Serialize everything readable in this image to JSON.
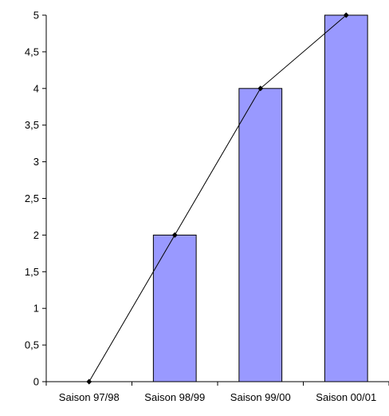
{
  "chart_data": {
    "type": "bar",
    "categories": [
      "Saison 97/98",
      "Saison 98/99",
      "Saison 99/00",
      "Saison 00/01"
    ],
    "series": [
      {
        "type": "bar",
        "values": [
          0,
          2,
          4,
          5
        ],
        "color": "#9999ff"
      },
      {
        "type": "line",
        "values": [
          0,
          2,
          4,
          5
        ],
        "color": "#000000"
      }
    ],
    "ylim": [
      0,
      5
    ],
    "yticks": [
      "0",
      "0,5",
      "1",
      "1,5",
      "2",
      "2,5",
      "3",
      "3,5",
      "4",
      "4,5",
      "5"
    ],
    "grid": false,
    "legend": "none"
  }
}
